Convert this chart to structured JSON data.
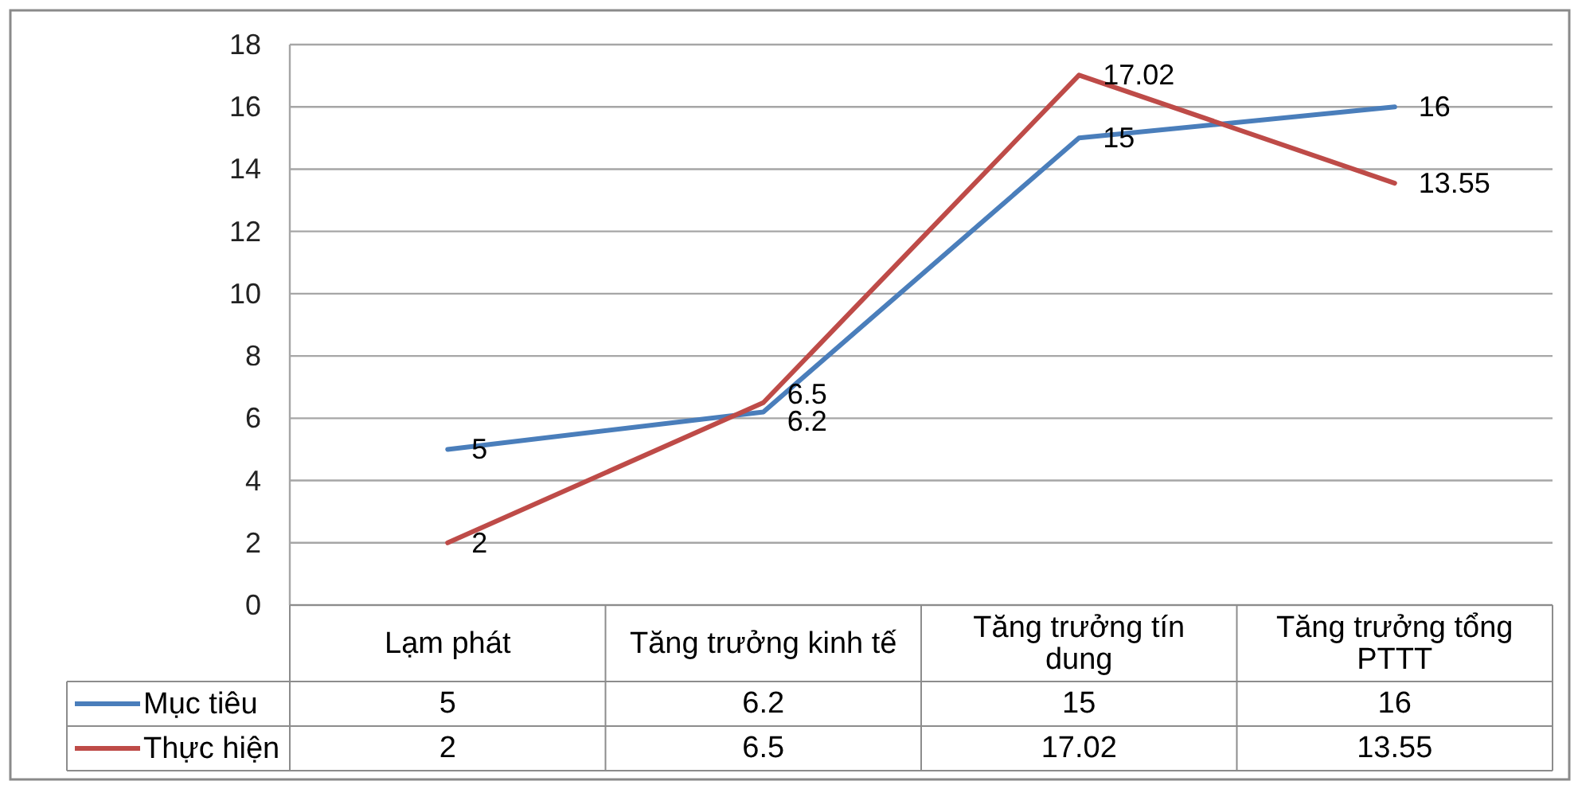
{
  "chart_data": {
    "type": "line",
    "categories": [
      "Lạm phát",
      "Tăng trưởng kinh tế",
      "Tăng trưởng tín dung",
      "Tăng trưởng tổng PTTT"
    ],
    "series": [
      {
        "name": "Mục tiêu",
        "color": "#4a7ebb",
        "values": [
          5,
          6.2,
          15,
          16
        ]
      },
      {
        "name": "Thực hiện",
        "color": "#be4b48",
        "values": [
          2,
          6.5,
          17.02,
          13.55
        ]
      }
    ],
    "ylim": [
      0,
      18
    ],
    "yticks": [
      0,
      2,
      4,
      6,
      8,
      10,
      12,
      14,
      16,
      18
    ],
    "grid": "y",
    "legend": "bottom",
    "data_labels": true,
    "annotations": [
      {
        "text": "5",
        "x": "Lạm phát",
        "y": 5
      },
      {
        "text": "6.2",
        "x": "Tăng trưởng kinh tế",
        "y": 6.2
      },
      {
        "text": "15",
        "x": "Tăng trưởng tín dung",
        "y": 15
      },
      {
        "text": "16",
        "x": "Tăng trưởng tổng PTTT",
        "y": 16
      },
      {
        "text": "2",
        "x": "Lạm phát",
        "y": 2
      },
      {
        "text": "6.5",
        "x": "Tăng trưởng kinh tế",
        "y": 6.5
      },
      {
        "text": "17.02",
        "x": "Tăng trưởng tín dung",
        "y": 17.02
      },
      {
        "text": "13.55",
        "x": "Tăng trưởng tổng PTTT",
        "y": 13.55
      }
    ]
  }
}
